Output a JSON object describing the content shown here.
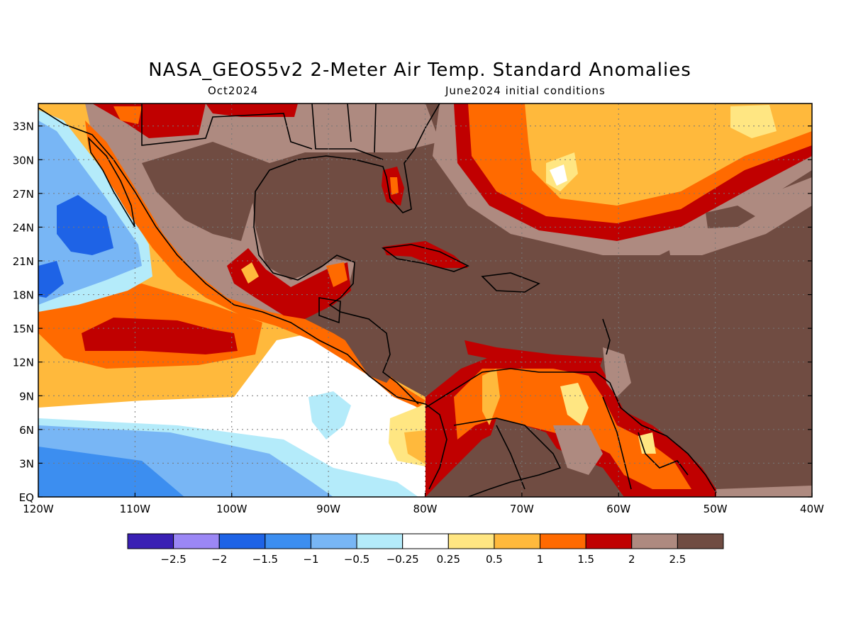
{
  "title": "NASA_GEOS5v2 2-Meter Air Temp. Standard Anomalies",
  "subtitle_left": "Oct2024",
  "subtitle_right": "June2024 initial conditions",
  "map": {
    "lon_range": [
      -120,
      -40
    ],
    "lat_range": [
      0,
      35
    ],
    "grid": true,
    "lon_ticks": [
      {
        "value": -120,
        "label": "120W"
      },
      {
        "value": -110,
        "label": "110W"
      },
      {
        "value": -100,
        "label": "100W"
      },
      {
        "value": -90,
        "label": "90W"
      },
      {
        "value": -80,
        "label": "80W"
      },
      {
        "value": -70,
        "label": "70W"
      },
      {
        "value": -60,
        "label": "60W"
      },
      {
        "value": -50,
        "label": "50W"
      },
      {
        "value": -40,
        "label": "40W"
      }
    ],
    "lat_ticks": [
      {
        "value": 0,
        "label": "EQ"
      },
      {
        "value": 3,
        "label": "3N"
      },
      {
        "value": 6,
        "label": "6N"
      },
      {
        "value": 9,
        "label": "9N"
      },
      {
        "value": 12,
        "label": "12N"
      },
      {
        "value": 15,
        "label": "15N"
      },
      {
        "value": 18,
        "label": "18N"
      },
      {
        "value": 21,
        "label": "21N"
      },
      {
        "value": 24,
        "label": "24N"
      },
      {
        "value": 27,
        "label": "27N"
      },
      {
        "value": 30,
        "label": "30N"
      },
      {
        "value": 33,
        "label": "33N"
      }
    ]
  },
  "colorbar": {
    "colors": [
      "#3a20b4",
      "#9b87f5",
      "#1e63e6",
      "#3c8ef0",
      "#78b6f5",
      "#b4ebfa",
      "#ffffff",
      "#ffe682",
      "#ffb93c",
      "#ff6a00",
      "#c00000",
      "#ae8a80",
      "#704c42"
    ],
    "labels": [
      "−2.5",
      "−2",
      "−1.5",
      "−1",
      "−0.5",
      "−0.25",
      "0.25",
      "0.5",
      "1",
      "1.5",
      "2",
      "2.5"
    ]
  }
}
